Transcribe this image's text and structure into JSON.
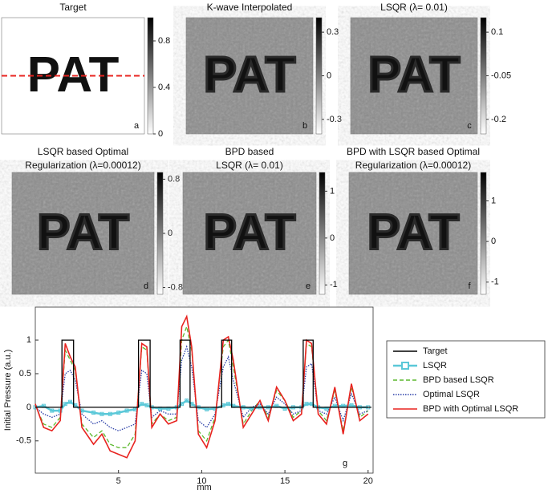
{
  "chart_data": [
    {
      "type": "image",
      "title": [
        "Target"
      ],
      "label": "a",
      "image_text": "PAT",
      "clim": [
        0,
        1
      ],
      "cticks": [
        0,
        0.4,
        0.8
      ]
    },
    {
      "type": "image",
      "title": [
        "K-wave Interpolated"
      ],
      "label": "b",
      "image_text": "PAT",
      "clim": [
        -0.4,
        0.4
      ],
      "cticks": [
        0.3,
        0,
        -0.3
      ]
    },
    {
      "type": "image",
      "title": [
        "LSQR (λ= 0.01)"
      ],
      "label": "c",
      "image_text": "PAT",
      "clim": [
        -0.25,
        0.15
      ],
      "cticks": [
        0.1,
        -0.05,
        -0.2
      ]
    },
    {
      "type": "image",
      "title": [
        "LSQR based Optimal",
        "Regularization (λ=0.00012)"
      ],
      "label": "d",
      "image_text": "PAT",
      "clim": [
        -0.9,
        0.9
      ],
      "cticks": [
        0.8,
        0,
        -0.8
      ]
    },
    {
      "type": "image",
      "title": [
        "BPD based",
        "LSQR (λ= 0.01)"
      ],
      "label": "e",
      "image_text": "PAT",
      "clim": [
        -1.2,
        1.4
      ],
      "cticks": [
        1,
        0,
        -1
      ]
    },
    {
      "type": "image",
      "title": [
        "BPD with LSQR based Optimal",
        "Regularization (λ=0.00012)"
      ],
      "label": "f",
      "image_text": "PAT",
      "clim": [
        -1.3,
        1.7
      ],
      "cticks": [
        1,
        0,
        -1
      ]
    },
    {
      "type": "line",
      "label": "g",
      "x_label": "mm",
      "y_label": "Initial Pressure (a.u.)",
      "xlim": [
        0,
        20.3
      ],
      "xticks": [
        5,
        10,
        15,
        20
      ],
      "ylim": [
        -0.98,
        1.49
      ],
      "yticks": [
        -0.5,
        0,
        0.5,
        1
      ],
      "x": [
        0,
        0.5,
        1,
        1.5,
        1.8,
        2.1,
        2.4,
        2.8,
        3.5,
        4,
        4.5,
        5,
        5.5,
        6,
        6.4,
        6.7,
        7,
        7.5,
        8,
        8.5,
        8.8,
        9.1,
        9.4,
        9.8,
        10.3,
        10.8,
        11.3,
        11.6,
        11.9,
        12.5,
        13,
        13.5,
        14,
        14.5,
        15,
        15.5,
        16,
        16.3,
        16.6,
        17,
        17.5,
        18,
        18.5,
        19,
        19.5,
        20
      ],
      "series": [
        {
          "name": "Target",
          "color": "#000000",
          "style": "solid",
          "x": [
            0,
            1.6,
            1.6,
            2.3,
            2.3,
            6.2,
            6.2,
            6.9,
            6.9,
            8.7,
            8.7,
            9.3,
            9.3,
            11.2,
            11.2,
            11.8,
            11.8,
            16.1,
            16.1,
            16.7,
            16.7,
            20.2
          ],
          "values": [
            0,
            0,
            1,
            1,
            0,
            0,
            1,
            1,
            0,
            0,
            1,
            1,
            0,
            0,
            1,
            1,
            0,
            0,
            1,
            1,
            0,
            0
          ]
        },
        {
          "name": "LSQR",
          "color": "#5bc8d8",
          "style": "marker",
          "values": [
            0,
            0.02,
            -0.05,
            -0.05,
            0.05,
            0.08,
            0.03,
            -0.05,
            -0.08,
            -0.1,
            -0.1,
            -0.08,
            -0.05,
            -0.03,
            0.05,
            0.03,
            0,
            -0.02,
            -0.02,
            0,
            0.05,
            0.1,
            0.05,
            0,
            -0.03,
            -0.02,
            0.03,
            0.05,
            0.02,
            0,
            -0.02,
            0,
            0,
            0.02,
            -0.02,
            0,
            0,
            0.05,
            0.05,
            0,
            -0.02,
            0.02,
            0.02,
            0.03,
            0,
            0
          ]
        },
        {
          "name": "BPD based LSQR",
          "color": "#5cb82e",
          "style": "dashed",
          "values": [
            0.03,
            -0.25,
            -0.3,
            -0.15,
            0.85,
            0.7,
            0.55,
            -0.25,
            -0.45,
            -0.35,
            -0.55,
            -0.6,
            -0.6,
            -0.4,
            0.9,
            0.85,
            -0.25,
            -0.1,
            -0.2,
            -0.15,
            1.0,
            1.2,
            0.85,
            -0.35,
            -0.5,
            -0.15,
            0.9,
            1.0,
            0.6,
            -0.25,
            -0.05,
            0.1,
            -0.15,
            0.25,
            0.1,
            -0.15,
            -0.05,
            0.95,
            0.9,
            -0.05,
            -0.2,
            0.25,
            -0.35,
            0.3,
            -0.15,
            -0.05
          ]
        },
        {
          "name": "Optimal LSQR",
          "color": "#2b3fa8",
          "style": "dotted",
          "values": [
            0,
            -0.1,
            -0.15,
            -0.1,
            0.5,
            0.55,
            0.4,
            -0.1,
            -0.25,
            -0.2,
            -0.3,
            -0.35,
            -0.3,
            -0.25,
            0.55,
            0.5,
            -0.15,
            -0.05,
            -0.1,
            -0.1,
            0.7,
            0.9,
            0.6,
            -0.2,
            -0.3,
            -0.1,
            0.6,
            0.75,
            0.4,
            -0.15,
            0,
            0.05,
            -0.1,
            0.15,
            0.05,
            -0.1,
            -0.05,
            0.6,
            0.65,
            -0.05,
            -0.1,
            0.15,
            -0.2,
            0.2,
            -0.1,
            -0.05
          ]
        },
        {
          "name": "BPD with Optimal  LSQR",
          "color": "#e8231f",
          "style": "solid",
          "values": [
            0.05,
            -0.3,
            -0.35,
            -0.2,
            0.95,
            0.75,
            0.6,
            -0.3,
            -0.55,
            -0.4,
            -0.65,
            -0.7,
            -0.75,
            -0.5,
            0.95,
            0.9,
            -0.3,
            -0.1,
            -0.25,
            -0.2,
            1.2,
            1.35,
            0.9,
            -0.4,
            -0.6,
            -0.2,
            1.0,
            1.05,
            0.7,
            -0.3,
            -0.1,
            0.1,
            -0.2,
            0.3,
            0.1,
            -0.2,
            -0.1,
            1.0,
            0.95,
            -0.1,
            -0.25,
            0.3,
            -0.4,
            0.35,
            -0.2,
            -0.1
          ]
        }
      ]
    }
  ]
}
